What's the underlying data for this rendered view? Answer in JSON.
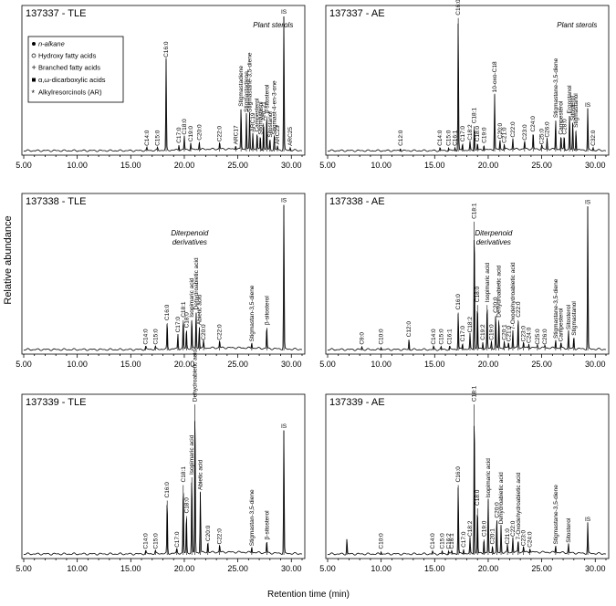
{
  "figure": {
    "ylabel": "Relative abundance",
    "xlabel": "Retention time (min)"
  },
  "legend": {
    "items": [
      {
        "symbol": "filled-circle",
        "label": "n-alkane"
      },
      {
        "symbol": "open-circle",
        "label": "Hydroxy fatty acids"
      },
      {
        "symbol": "plus",
        "label": "Branched fatty acids"
      },
      {
        "symbol": "filled-square",
        "label": "α,ω-dicarboxylic acids"
      },
      {
        "symbol": "asterisk",
        "label": "Alkylresorcinols (AR)"
      }
    ]
  },
  "chart_data": [
    {
      "type": "line",
      "id": "p1",
      "title": "137337 - TLE",
      "annotation": "Plant sterols",
      "xlim": [
        5,
        31
      ],
      "ylim": [
        0,
        1
      ],
      "xticks": [
        "5.00",
        "10.00",
        "15.00",
        "20.00",
        "25.00",
        "30.00"
      ],
      "peaks": [
        {
          "x": 16.5,
          "y": 0.02,
          "label": "C14:0"
        },
        {
          "x": 17.5,
          "y": 0.02,
          "label": "C15:0"
        },
        {
          "x": 18.3,
          "y": 0.65,
          "label": "C16:0"
        },
        {
          "x": 19.5,
          "y": 0.04,
          "label": "C17:0"
        },
        {
          "x": 20.0,
          "y": 0.1,
          "label": "C18:0"
        },
        {
          "x": 20.6,
          "y": 0.05,
          "label": "C19:0"
        },
        {
          "x": 21.4,
          "y": 0.06,
          "label": "C20:0"
        },
        {
          "x": 23.3,
          "y": 0.05,
          "label": "C22:0"
        },
        {
          "x": 24.8,
          "y": 0.03,
          "label": "ARC17"
        },
        {
          "x": 25.3,
          "y": 0.3,
          "label": "Stigmastadiene"
        },
        {
          "x": 25.8,
          "y": 0.26,
          "label": "Stigmastadiene"
        },
        {
          "x": 26.1,
          "y": 0.26,
          "label": "Stigmastane-3,5-diene"
        },
        {
          "x": 26.4,
          "y": 0.12,
          "label": "ARC19"
        },
        {
          "x": 26.8,
          "y": 0.12,
          "label": "Campesterol"
        },
        {
          "x": 27.1,
          "y": 0.1,
          "label": "Stigmasterol"
        },
        {
          "x": 27.4,
          "y": 0.2,
          "label": "ARC21"
        },
        {
          "x": 27.7,
          "y": 0.25,
          "label": "β-sitosterol"
        },
        {
          "x": 28.0,
          "y": 0.08,
          "label": "Sitostanol"
        },
        {
          "x": 28.4,
          "y": 0.1,
          "label": "Stigmast-4-en-3-one"
        },
        {
          "x": 28.7,
          "y": 0.03,
          "label": "ARC23"
        },
        {
          "x": 29.3,
          "y": 0.96,
          "label": "IS"
        },
        {
          "x": 29.9,
          "y": 0.02,
          "label": "ARC25"
        }
      ]
    },
    {
      "type": "line",
      "id": "p2",
      "title": "137337 - AE",
      "annotation": "Plant sterols",
      "xlim": [
        5,
        31
      ],
      "ylim": [
        0,
        1
      ],
      "xticks": [
        "5.00",
        "10.00",
        "15.00",
        "20.00",
        "25.00",
        "30.00"
      ],
      "peaks": [
        {
          "x": 11.8,
          "y": 0.02,
          "label": "C12:0"
        },
        {
          "x": 15.5,
          "y": 0.02,
          "label": "C14:0"
        },
        {
          "x": 16.3,
          "y": 0.02,
          "label": "C15:0"
        },
        {
          "x": 17.2,
          "y": 0.95,
          "label": "C16:0"
        },
        {
          "x": 16.9,
          "y": 0.02,
          "label": "C16:1"
        },
        {
          "x": 17.6,
          "y": 0.05,
          "label": "C17:0"
        },
        {
          "x": 18.3,
          "y": 0.06,
          "label": "C18:2"
        },
        {
          "x": 18.7,
          "y": 0.18,
          "label": "C18:1"
        },
        {
          "x": 19.0,
          "y": 0.05,
          "label": "C18:0"
        },
        {
          "x": 19.6,
          "y": 0.04,
          "label": "C19:0"
        },
        {
          "x": 20.6,
          "y": 0.4,
          "label": "10-oxo-C18"
        },
        {
          "x": 21.1,
          "y": 0.07,
          "label": "C20:0"
        },
        {
          "x": 21.5,
          "y": 0.04,
          "label": "C21:0"
        },
        {
          "x": 22.3,
          "y": 0.08,
          "label": "C22:0"
        },
        {
          "x": 23.4,
          "y": 0.06,
          "label": "C23:0"
        },
        {
          "x": 24.2,
          "y": 0.12,
          "label": "C24:0"
        },
        {
          "x": 25.0,
          "y": 0.03,
          "label": "C25:0"
        },
        {
          "x": 25.5,
          "y": 0.08,
          "label": "C26:0"
        },
        {
          "x": 26.3,
          "y": 0.22,
          "label": "Stigmastane-3,5-diene"
        },
        {
          "x": 26.8,
          "y": 0.1,
          "label": "Campesterol"
        },
        {
          "x": 27.1,
          "y": 0.1,
          "label": "C28:0"
        },
        {
          "x": 27.6,
          "y": 0.25,
          "label": "Ergostanol"
        },
        {
          "x": 27.9,
          "y": 0.2,
          "label": "Sitosterol"
        },
        {
          "x": 28.2,
          "y": 0.15,
          "label": "Stigmastanol"
        },
        {
          "x": 29.3,
          "y": 0.3,
          "label": "IS"
        },
        {
          "x": 29.8,
          "y": 0.02,
          "label": "C32:0"
        }
      ]
    },
    {
      "type": "line",
      "id": "p3",
      "title": "137338 - TLE",
      "annotation": "Diterpenoid derivatives",
      "xlim": [
        5,
        31
      ],
      "ylim": [
        0,
        1
      ],
      "xticks": [
        "5.00",
        "10.00",
        "15.00",
        "20.00",
        "25.00",
        "30.00"
      ],
      "peaks": [
        {
          "x": 16.4,
          "y": 0.02,
          "label": "C14:0"
        },
        {
          "x": 17.3,
          "y": 0.02,
          "label": "C15:0"
        },
        {
          "x": 18.4,
          "y": 0.18,
          "label": "C16:0"
        },
        {
          "x": 19.4,
          "y": 0.1,
          "label": "C17:0"
        },
        {
          "x": 19.9,
          "y": 0.2,
          "label": "C18:1"
        },
        {
          "x": 20.2,
          "y": 0.13,
          "label": "C18:0"
        },
        {
          "x": 20.7,
          "y": 0.2,
          "label": "Isopimaric acid"
        },
        {
          "x": 21.1,
          "y": 0.25,
          "label": "Dehydroabietic acid"
        },
        {
          "x": 21.4,
          "y": 0.15,
          "label": "Abietic acid"
        },
        {
          "x": 21.8,
          "y": 0.05,
          "label": "C20:0"
        },
        {
          "x": 23.3,
          "y": 0.05,
          "label": "C22:0"
        },
        {
          "x": 26.3,
          "y": 0.04,
          "label": "Stigmastan-3,5-diene"
        },
        {
          "x": 27.7,
          "y": 0.15,
          "label": "β-sitosterol"
        },
        {
          "x": 29.3,
          "y": 0.96,
          "label": "IS"
        }
      ]
    },
    {
      "type": "line",
      "id": "p4",
      "title": "137338 - AE",
      "annotation": "Diterpenoid derivatives",
      "xlim": [
        5,
        31
      ],
      "ylim": [
        0,
        1
      ],
      "xticks": [
        "5.00",
        "10.00",
        "15.00",
        "20.00",
        "25.00",
        "30.00"
      ],
      "peaks": [
        {
          "x": 8.2,
          "y": 0.02,
          "label": "C9:0"
        },
        {
          "x": 10.0,
          "y": 0.02,
          "label": "C10:0"
        },
        {
          "x": 12.6,
          "y": 0.07,
          "label": "C12:0"
        },
        {
          "x": 14.9,
          "y": 0.02,
          "label": "C14:0"
        },
        {
          "x": 15.6,
          "y": 0.02,
          "label": "C15:0"
        },
        {
          "x": 16.4,
          "y": 0.02,
          "label": "C16:1"
        },
        {
          "x": 17.2,
          "y": 0.25,
          "label": "C16:0"
        },
        {
          "x": 17.6,
          "y": 0.04,
          "label": "C17:0"
        },
        {
          "x": 18.3,
          "y": 0.1,
          "label": "C18:2"
        },
        {
          "x": 18.7,
          "y": 0.85,
          "label": "C18:1"
        },
        {
          "x": 19.0,
          "y": 0.3,
          "label": "C18:0"
        },
        {
          "x": 19.5,
          "y": 0.05,
          "label": "C19:2"
        },
        {
          "x": 19.9,
          "y": 0.3,
          "label": "Isopimaric acid"
        },
        {
          "x": 20.3,
          "y": 0.05,
          "label": "C19:0"
        },
        {
          "x": 20.7,
          "y": 0.23,
          "label": "C20:0"
        },
        {
          "x": 21.0,
          "y": 0.2,
          "label": "Dehydroabietic acid"
        },
        {
          "x": 21.5,
          "y": 0.05,
          "label": "C20:1"
        },
        {
          "x": 21.9,
          "y": 0.04,
          "label": "C21:0"
        },
        {
          "x": 22.3,
          "y": 0.12,
          "label": "7-Oxodehydroabietic acid"
        },
        {
          "x": 22.8,
          "y": 0.2,
          "label": "C22:0"
        },
        {
          "x": 23.3,
          "y": 0.04,
          "label": "C23:0"
        },
        {
          "x": 23.8,
          "y": 0.03,
          "label": "C24:0"
        },
        {
          "x": 24.6,
          "y": 0.02,
          "label": "C25:0"
        },
        {
          "x": 25.3,
          "y": 0.02,
          "label": "C26:0"
        },
        {
          "x": 26.3,
          "y": 0.06,
          "label": "Stigmastane-3,5-diene"
        },
        {
          "x": 26.8,
          "y": 0.04,
          "label": "Campesterol"
        },
        {
          "x": 27.5,
          "y": 0.12,
          "label": "Sitosterol"
        },
        {
          "x": 28.0,
          "y": 0.08,
          "label": "Stigmastanol"
        },
        {
          "x": 29.3,
          "y": 0.95,
          "label": "IS"
        }
      ]
    },
    {
      "type": "line",
      "id": "p5",
      "title": "137339 - TLE",
      "annotation": "",
      "xlim": [
        5,
        31
      ],
      "ylim": [
        0,
        1
      ],
      "xticks": [
        "5.00",
        "10.00",
        "15.00",
        "20.00",
        "25.00",
        "30.00"
      ],
      "peaks": [
        {
          "x": 16.4,
          "y": 0.02,
          "label": "C14:0"
        },
        {
          "x": 17.3,
          "y": 0.02,
          "label": "C15:0"
        },
        {
          "x": 18.4,
          "y": 0.35,
          "label": "C16:0"
        },
        {
          "x": 19.3,
          "y": 0.03,
          "label": "C17:0"
        },
        {
          "x": 19.9,
          "y": 0.45,
          "label": "C18:1"
        },
        {
          "x": 20.2,
          "y": 0.25,
          "label": "C18:0"
        },
        {
          "x": 20.7,
          "y": 0.5,
          "label": "Isopimaric acid"
        },
        {
          "x": 21.0,
          "y": 0.97,
          "label": "Dehydroabietic acid"
        },
        {
          "x": 21.5,
          "y": 0.4,
          "label": "Abietic acid"
        },
        {
          "x": 22.2,
          "y": 0.07,
          "label": "C20:0"
        },
        {
          "x": 23.3,
          "y": 0.05,
          "label": "C22:0"
        },
        {
          "x": 26.3,
          "y": 0.04,
          "label": "Stigmastan-3,5-diene"
        },
        {
          "x": 27.7,
          "y": 0.08,
          "label": "β-sitosterol"
        },
        {
          "x": 29.3,
          "y": 0.8,
          "label": "IS"
        }
      ]
    },
    {
      "type": "line",
      "id": "p6",
      "title": "137339 - AE",
      "annotation": "",
      "xlim": [
        5,
        31
      ],
      "ylim": [
        0,
        1
      ],
      "xticks": [
        "5.00",
        "10.00",
        "15.00",
        "20.00",
        "25.00",
        "30.00"
      ],
      "peaks": [
        {
          "x": 6.8,
          "y": 0.1,
          "label": ""
        },
        {
          "x": 10.0,
          "y": 0.02,
          "label": "C10:0"
        },
        {
          "x": 14.8,
          "y": 0.02,
          "label": "C14:0"
        },
        {
          "x": 15.7,
          "y": 0.02,
          "label": "C15:0"
        },
        {
          "x": 16.3,
          "y": 0.02,
          "label": "C16:2"
        },
        {
          "x": 16.6,
          "y": 0.02,
          "label": "C16:1"
        },
        {
          "x": 17.2,
          "y": 0.45,
          "label": "C16:0"
        },
        {
          "x": 17.7,
          "y": 0.03,
          "label": "C17:0"
        },
        {
          "x": 18.3,
          "y": 0.1,
          "label": "C18:2"
        },
        {
          "x": 18.7,
          "y": 0.97,
          "label": "C18:1"
        },
        {
          "x": 19.0,
          "y": 0.3,
          "label": "C18:0"
        },
        {
          "x": 19.6,
          "y": 0.1,
          "label": "C19:0"
        },
        {
          "x": 20.0,
          "y": 0.35,
          "label": "Isopimaric acid"
        },
        {
          "x": 20.4,
          "y": 0.05,
          "label": "C20:1"
        },
        {
          "x": 20.8,
          "y": 0.22,
          "label": "C20:0"
        },
        {
          "x": 21.2,
          "y": 0.18,
          "label": "Dehydroabietic acid"
        },
        {
          "x": 21.8,
          "y": 0.05,
          "label": "C21:0"
        },
        {
          "x": 22.3,
          "y": 0.1,
          "label": "C22:0"
        },
        {
          "x": 22.8,
          "y": 0.08,
          "label": "7-Oxodehydroabietic acid"
        },
        {
          "x": 23.3,
          "y": 0.04,
          "label": "C23:0"
        },
        {
          "x": 23.9,
          "y": 0.03,
          "label": "C24:0"
        },
        {
          "x": 26.3,
          "y": 0.05,
          "label": "Stigmastane-3,5-diene"
        },
        {
          "x": 27.5,
          "y": 0.06,
          "label": "Sitosterol"
        },
        {
          "x": 29.3,
          "y": 0.2,
          "label": "IS"
        }
      ]
    }
  ]
}
